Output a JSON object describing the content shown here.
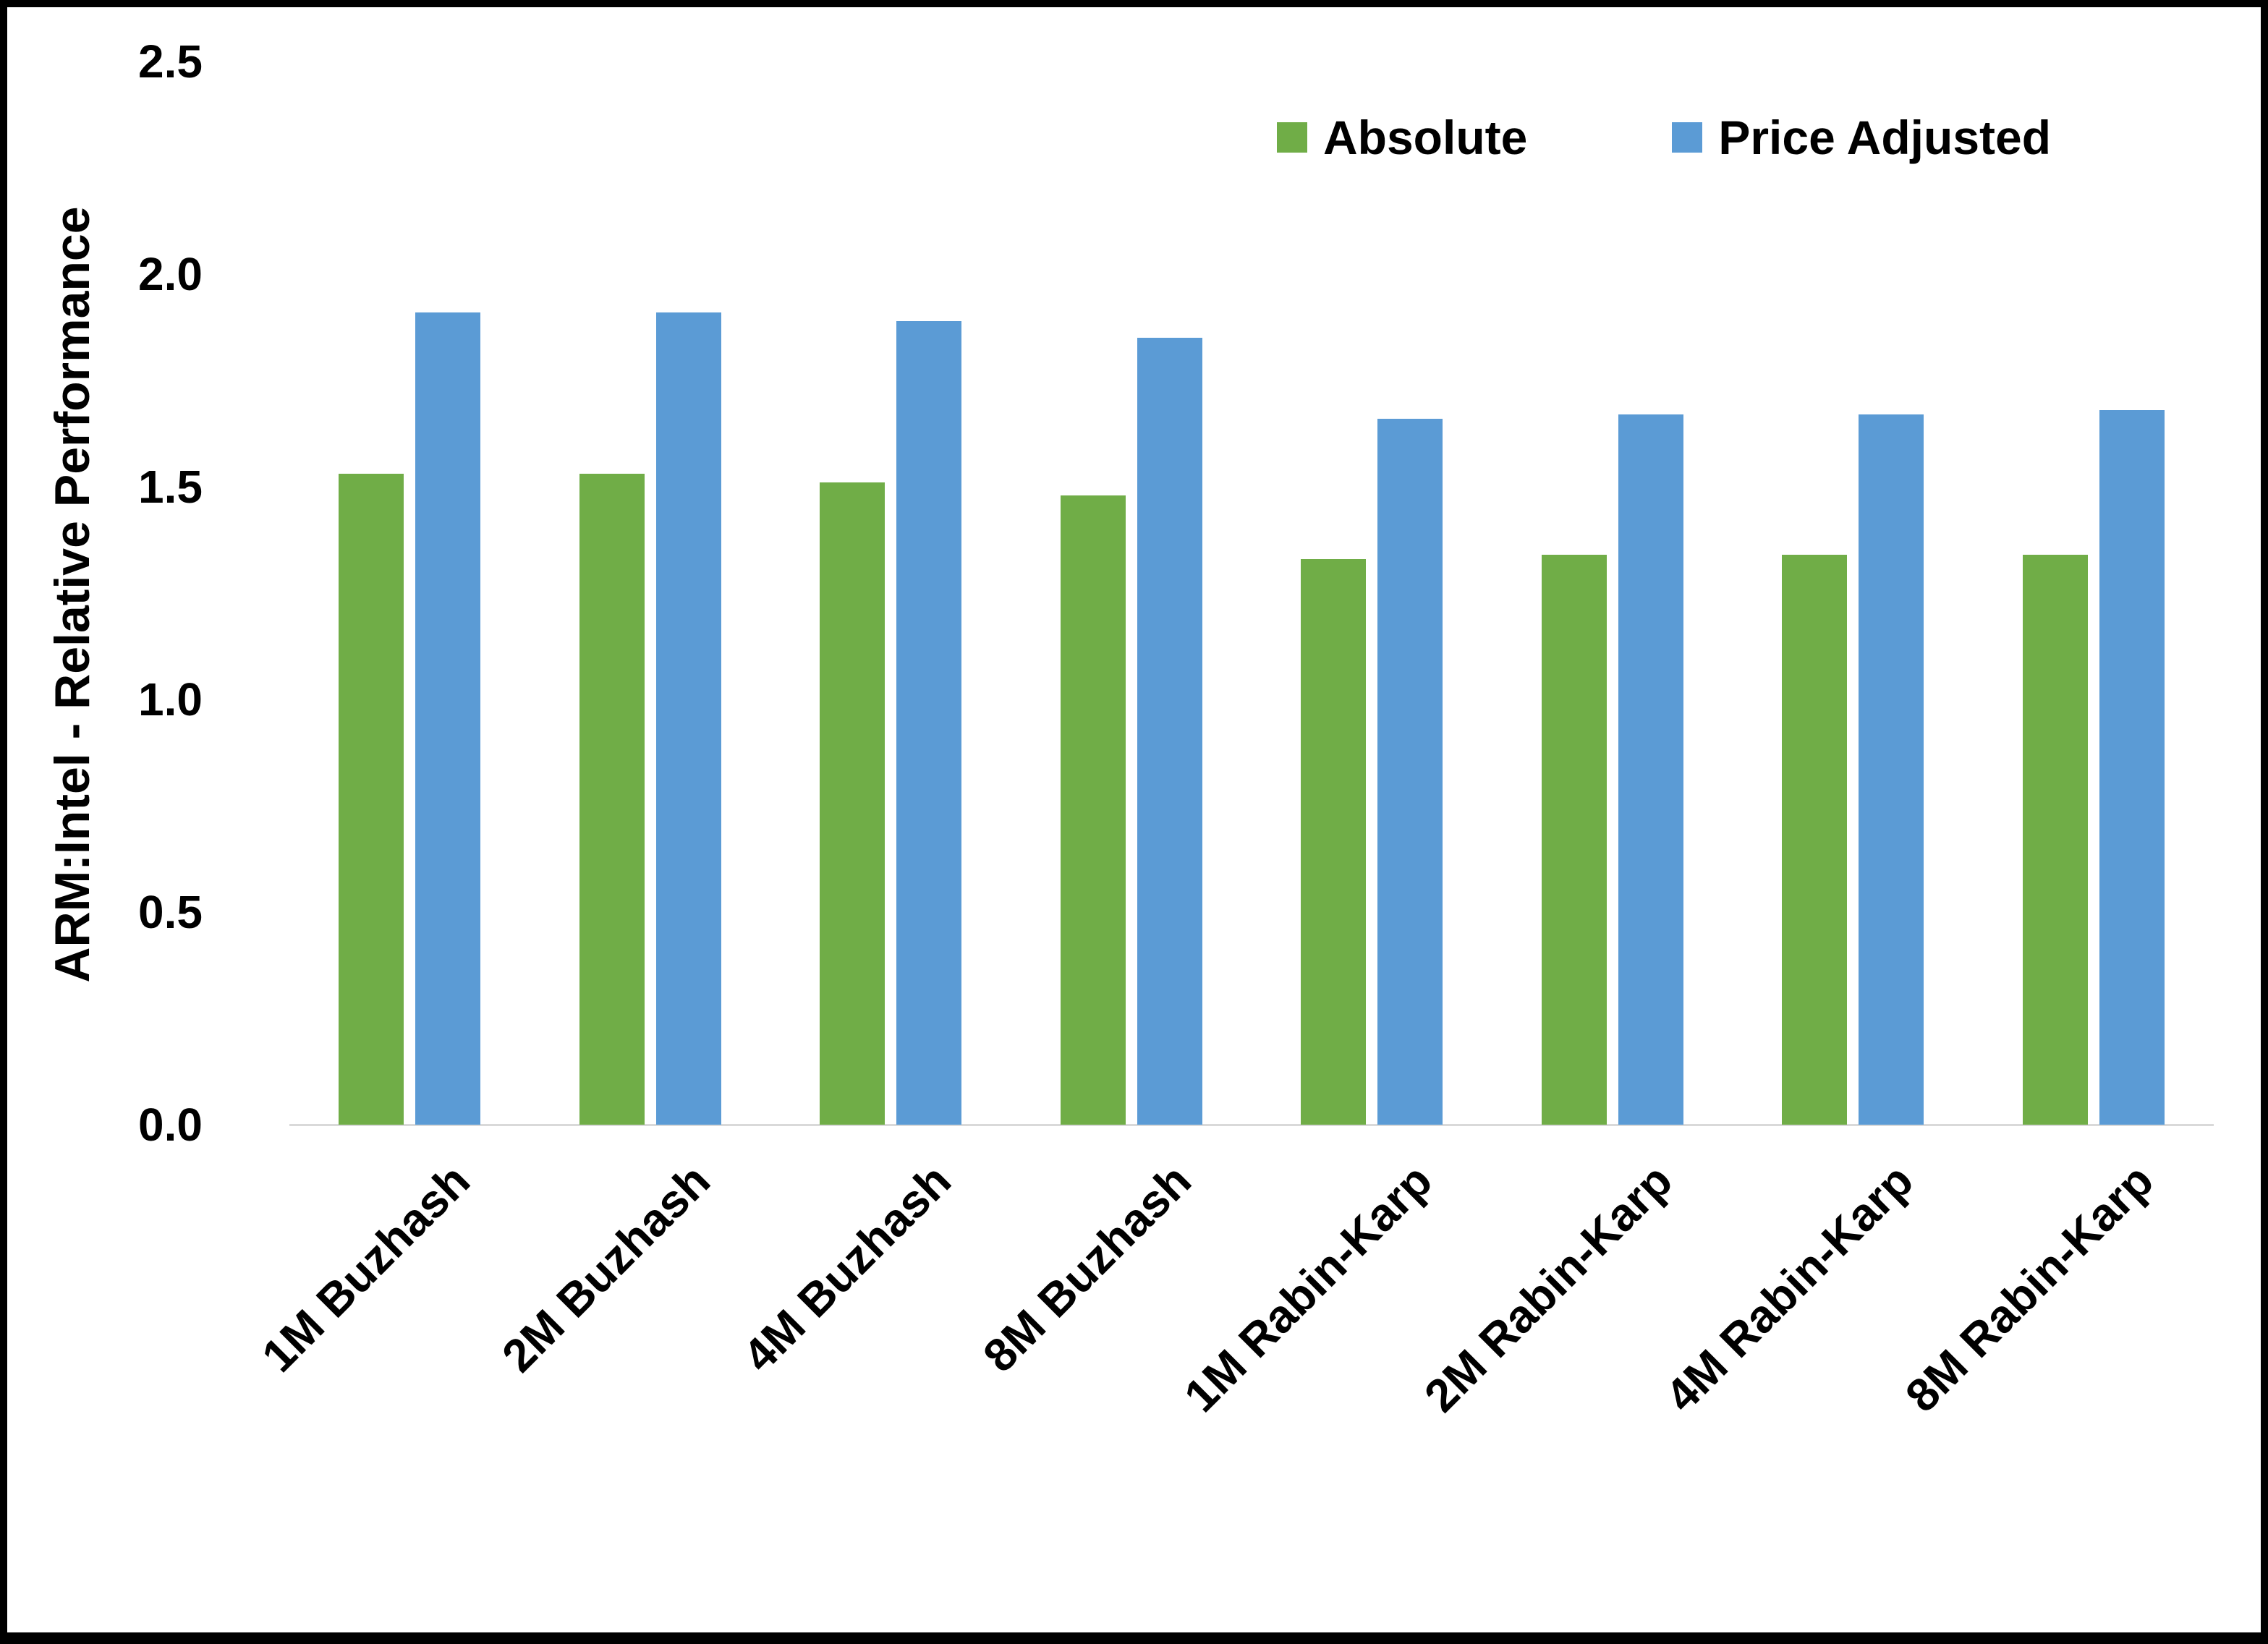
{
  "chart_data": {
    "type": "bar",
    "title": "",
    "ylabel": "ARM:Intel - Relative Performance",
    "xlabel": "",
    "ylim": [
      0,
      2.5
    ],
    "ytick_labels": [
      "0.0",
      "0.5",
      "1.0",
      "1.5",
      "2.0",
      "2.5"
    ],
    "grid": false,
    "legend_position": "top-right",
    "categories": [
      "1M Buzhash",
      "2M Buzhash",
      "4M Buzhash",
      "8M Buzhash",
      "1M Rabin-Karp",
      "2M Rabin-Karp",
      "4M Rabin-Karp",
      "8M Rabin-Karp"
    ],
    "series": [
      {
        "name": "Absolute",
        "color": "#70AD47",
        "values": [
          1.53,
          1.53,
          1.51,
          1.48,
          1.33,
          1.34,
          1.34,
          1.34
        ]
      },
      {
        "name": "Price Adjusted",
        "color": "#5B9BD5",
        "values": [
          1.91,
          1.91,
          1.89,
          1.85,
          1.66,
          1.67,
          1.67,
          1.68
        ]
      }
    ]
  }
}
